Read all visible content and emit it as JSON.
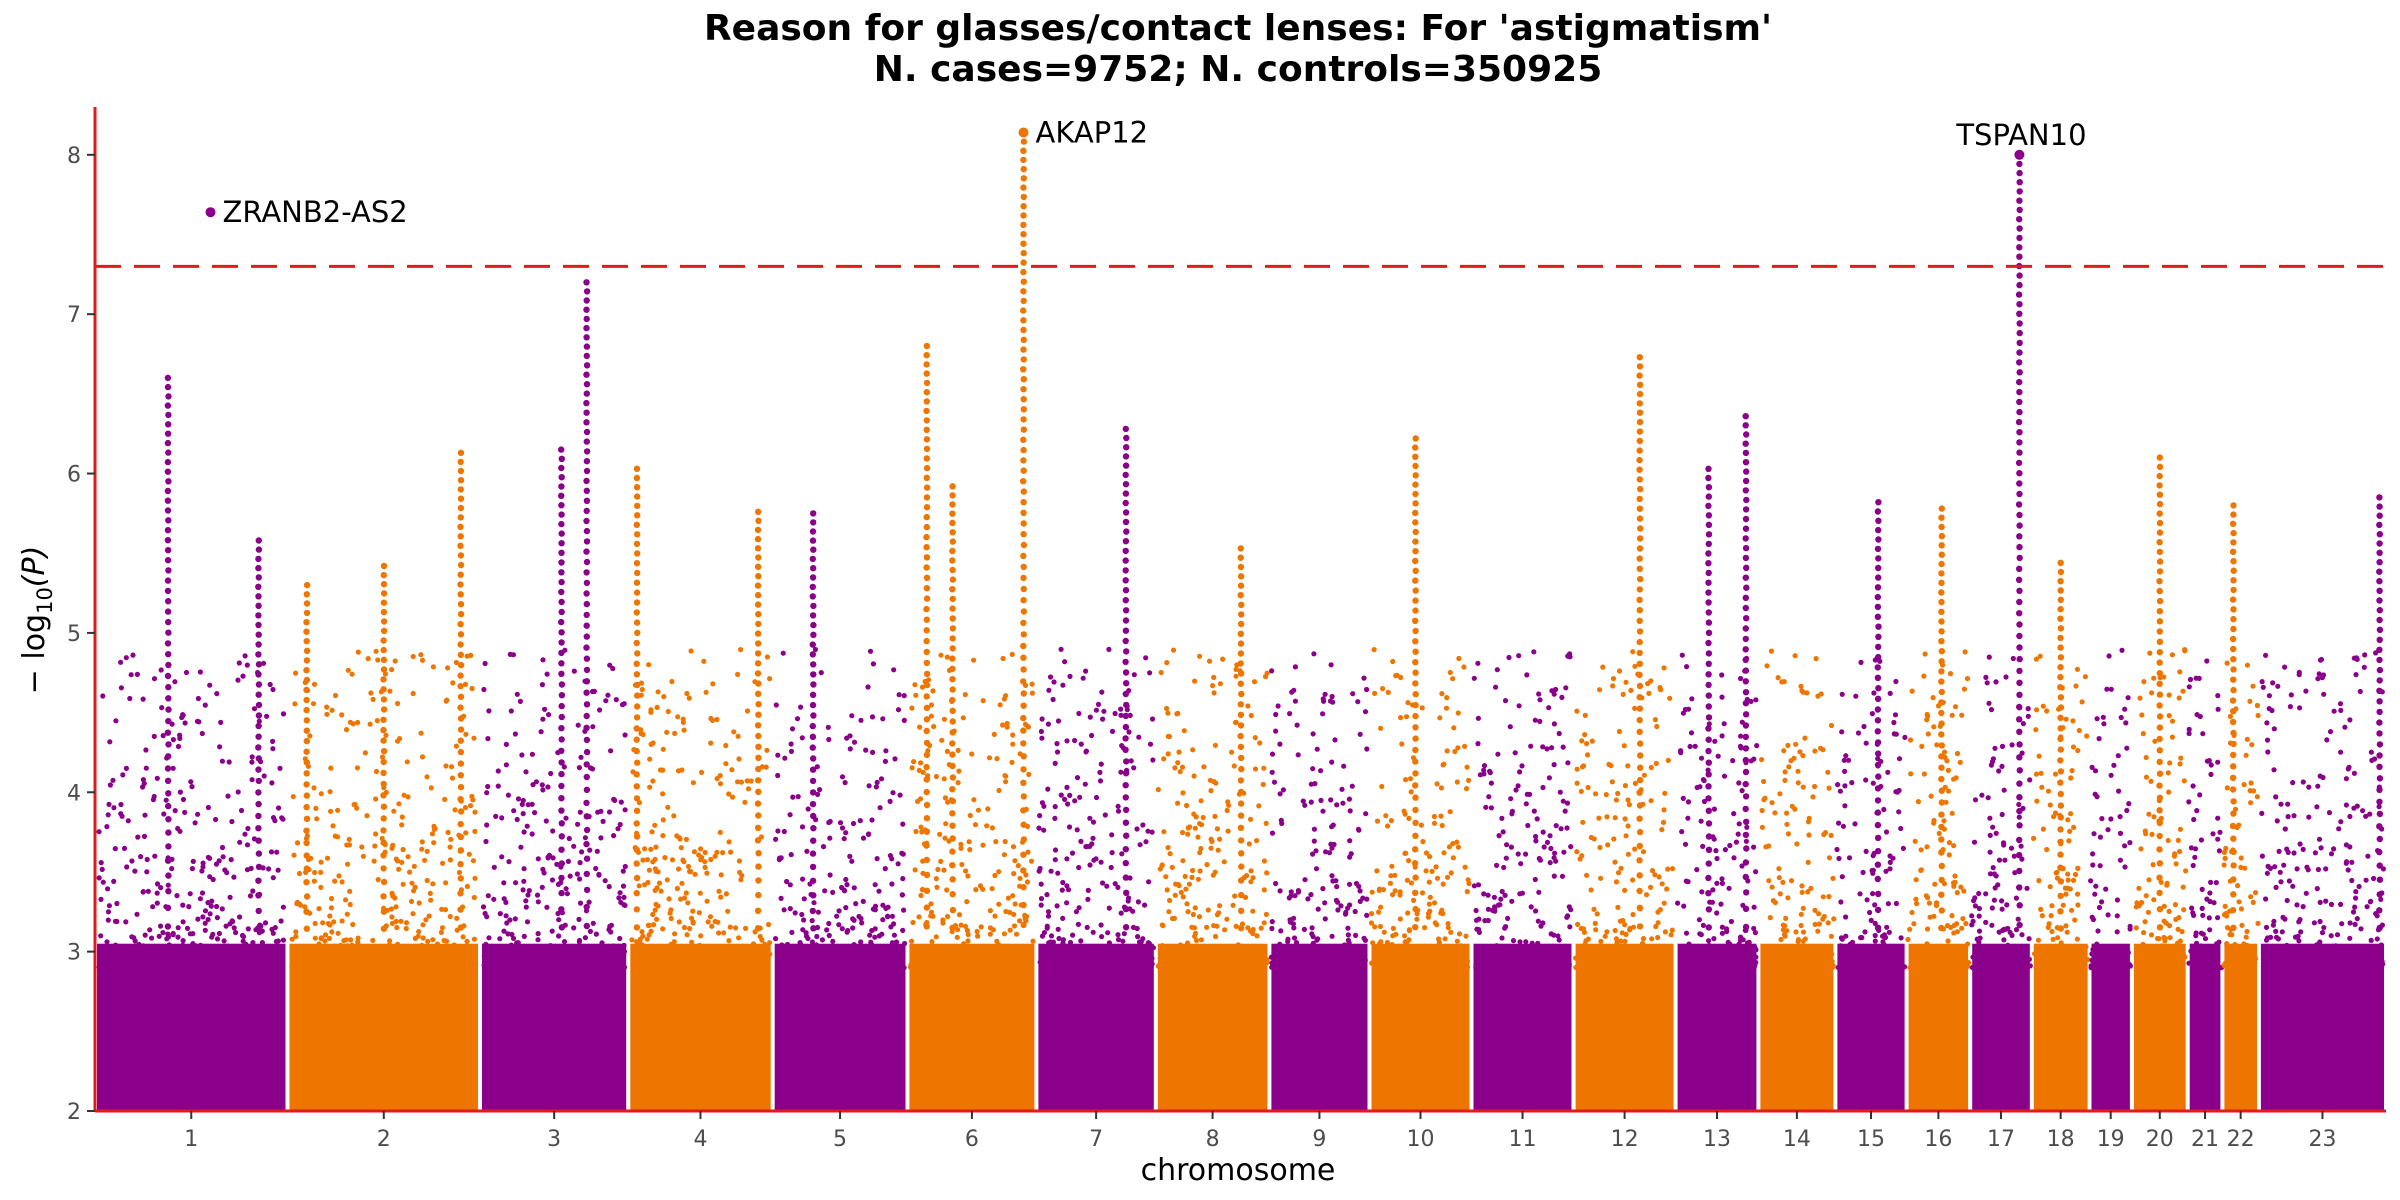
{
  "chart_data": {
    "type": "scatter",
    "subtype": "manhattan",
    "title": "Reason for glasses/contact lenses: For 'astigmatism'",
    "subtitle": "N. cases=9752; N. controls=350925",
    "xlabel": "chromosome",
    "ylabel_main": "− log",
    "ylabel_sub": "10",
    "ylabel_tail": "(P)",
    "ylim": [
      2,
      8.3
    ],
    "y_ticks": [
      2,
      3,
      4,
      5,
      6,
      7,
      8
    ],
    "threshold": 7.3,
    "threshold_style": "dashed",
    "grid": false,
    "colors": {
      "odd": "#8b008b",
      "even": "#ee7600",
      "threshold": "#e31a1c",
      "axis": "#e31a1c"
    },
    "chromosomes": [
      {
        "label": "1",
        "span": [
          0,
          100
        ]
      },
      {
        "label": "2",
        "span": [
          100,
          200
        ]
      },
      {
        "label": "3",
        "span": [
          200,
          277
        ]
      },
      {
        "label": "4",
        "span": [
          277,
          352
        ]
      },
      {
        "label": "5",
        "span": [
          352,
          422
        ]
      },
      {
        "label": "6",
        "span": [
          422,
          489
        ]
      },
      {
        "label": "7",
        "span": [
          489,
          551
        ]
      },
      {
        "label": "8",
        "span": [
          551,
          610
        ]
      },
      {
        "label": "9",
        "span": [
          610,
          662
        ]
      },
      {
        "label": "10",
        "span": [
          662,
          715
        ]
      },
      {
        "label": "11",
        "span": [
          715,
          768
        ]
      },
      {
        "label": "12",
        "span": [
          768,
          821
        ]
      },
      {
        "label": "13",
        "span": [
          821,
          864
        ]
      },
      {
        "label": "14",
        "span": [
          864,
          904
        ]
      },
      {
        "label": "15",
        "span": [
          904,
          941
        ]
      },
      {
        "label": "16",
        "span": [
          941,
          974
        ]
      },
      {
        "label": "17",
        "span": [
          974,
          1006
        ]
      },
      {
        "label": "18",
        "span": [
          1006,
          1036
        ]
      },
      {
        "label": "19",
        "span": [
          1036,
          1058
        ]
      },
      {
        "label": "20",
        "span": [
          1058,
          1087
        ]
      },
      {
        "label": "21",
        "span": [
          1087,
          1105
        ]
      },
      {
        "label": "22",
        "span": [
          1105,
          1124
        ]
      },
      {
        "label": "23",
        "span": [
          1124,
          1190
        ]
      }
    ],
    "peaks": [
      {
        "chrom": "1",
        "pos": 0.38,
        "y": 6.6
      },
      {
        "chrom": "1",
        "pos": 0.85,
        "y": 5.58
      },
      {
        "chrom": "2",
        "pos": 0.1,
        "y": 5.3
      },
      {
        "chrom": "2",
        "pos": 0.5,
        "y": 5.42
      },
      {
        "chrom": "2",
        "pos": 0.9,
        "y": 6.13
      },
      {
        "chrom": "3",
        "pos": 0.55,
        "y": 6.15
      },
      {
        "chrom": "3",
        "pos": 0.72,
        "y": 7.2
      },
      {
        "chrom": "4",
        "pos": 0.06,
        "y": 6.03
      },
      {
        "chrom": "4",
        "pos": 0.9,
        "y": 5.76
      },
      {
        "chrom": "5",
        "pos": 0.3,
        "y": 5.75
      },
      {
        "chrom": "6",
        "pos": 0.15,
        "y": 6.8
      },
      {
        "chrom": "6",
        "pos": 0.35,
        "y": 5.92
      },
      {
        "chrom": "6",
        "pos": 0.9,
        "y": 8.14
      },
      {
        "chrom": "7",
        "pos": 0.75,
        "y": 6.28
      },
      {
        "chrom": "8",
        "pos": 0.75,
        "y": 5.53
      },
      {
        "chrom": "10",
        "pos": 0.45,
        "y": 6.22
      },
      {
        "chrom": "12",
        "pos": 0.65,
        "y": 6.73
      },
      {
        "chrom": "13",
        "pos": 0.4,
        "y": 6.03
      },
      {
        "chrom": "13",
        "pos": 0.85,
        "y": 6.36
      },
      {
        "chrom": "15",
        "pos": 0.6,
        "y": 5.82
      },
      {
        "chrom": "16",
        "pos": 0.55,
        "y": 5.78
      },
      {
        "chrom": "17",
        "pos": 0.8,
        "y": 8.0
      },
      {
        "chrom": "18",
        "pos": 0.5,
        "y": 5.44
      },
      {
        "chrom": "20",
        "pos": 0.5,
        "y": 6.1
      },
      {
        "chrom": "22",
        "pos": 0.3,
        "y": 5.8
      },
      {
        "chrom": "23",
        "pos": 0.95,
        "y": 5.85
      }
    ],
    "annotations": [
      {
        "label": "ZRANB2-AS2",
        "chrom": "1",
        "pos": 0.6,
        "y": 7.64
      },
      {
        "label": "AKAP12",
        "chrom": "6",
        "pos": 0.9,
        "y": 8.14
      },
      {
        "label": "TSPAN10",
        "chrom": "17",
        "pos": 0.8,
        "y": 8.0
      }
    ]
  }
}
